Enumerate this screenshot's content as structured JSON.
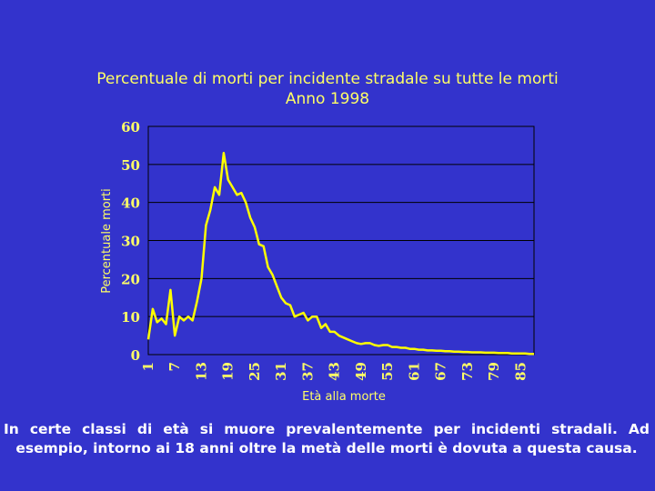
{
  "chart_data": {
    "type": "line",
    "title": "Percentuale di morti per incidente stradale su tutte le morti",
    "subtitle": "Anno 1998",
    "xlabel": "Età alla morte",
    "ylabel": "Percentuale morti",
    "ylim": [
      0,
      60
    ],
    "xlim": [
      1,
      88
    ],
    "yticks": [
      "0",
      "10",
      "20",
      "30",
      "40",
      "50",
      "60"
    ],
    "xticks": [
      "1",
      "7",
      "13",
      "19",
      "25",
      "31",
      "37",
      "43",
      "49",
      "55",
      "61",
      "67",
      "73",
      "79",
      "85"
    ],
    "grid": true,
    "line_color": "#ffff00",
    "series": [
      {
        "x": [
          1,
          2,
          3,
          4,
          5,
          6,
          7,
          8,
          9,
          10,
          11,
          12,
          13,
          14,
          15,
          16,
          17,
          18,
          19,
          20,
          21,
          22,
          23,
          24,
          25,
          26,
          27,
          28,
          29,
          30,
          31,
          32,
          33,
          34,
          35,
          36,
          37,
          38,
          39,
          40,
          41,
          42,
          43,
          44,
          45,
          46,
          47,
          48,
          49,
          50,
          51,
          52,
          53,
          54,
          55,
          56,
          57,
          58,
          59,
          60,
          61,
          62,
          63,
          64,
          65,
          66,
          67,
          68,
          69,
          70,
          71,
          72,
          73,
          74,
          75,
          76,
          77,
          78,
          79,
          80,
          81,
          82,
          83,
          84,
          85,
          86,
          87,
          88
        ],
        "values": [
          4,
          12,
          8.5,
          9.5,
          8,
          17,
          5,
          10,
          9,
          10,
          9,
          14,
          20,
          34,
          38,
          44,
          42,
          53,
          46,
          44,
          42,
          42.5,
          40,
          36,
          33.5,
          29,
          28.5,
          23,
          21,
          18,
          15,
          13.5,
          13,
          10,
          10.5,
          11,
          9,
          10,
          10,
          7,
          8,
          6,
          6,
          5,
          4.5,
          4,
          3.5,
          3,
          2.8,
          3,
          3,
          2.5,
          2.3,
          2.5,
          2.5,
          2,
          2,
          1.8,
          1.8,
          1.5,
          1.5,
          1.3,
          1.3,
          1.1,
          1.1,
          1,
          1,
          0.9,
          0.9,
          0.8,
          0.8,
          0.7,
          0.7,
          0.6,
          0.6,
          0.6,
          0.5,
          0.5,
          0.5,
          0.4,
          0.4,
          0.4,
          0.3,
          0.3,
          0.3,
          0.3,
          0.2,
          0.2
        ]
      }
    ]
  },
  "caption": {
    "line1": "In certe classi di età si muore prevalentemente per incidenti stradali. Ad",
    "line2": "esempio, intorno ai 18 anni oltre la metà delle morti è dovuta a questa causa."
  }
}
